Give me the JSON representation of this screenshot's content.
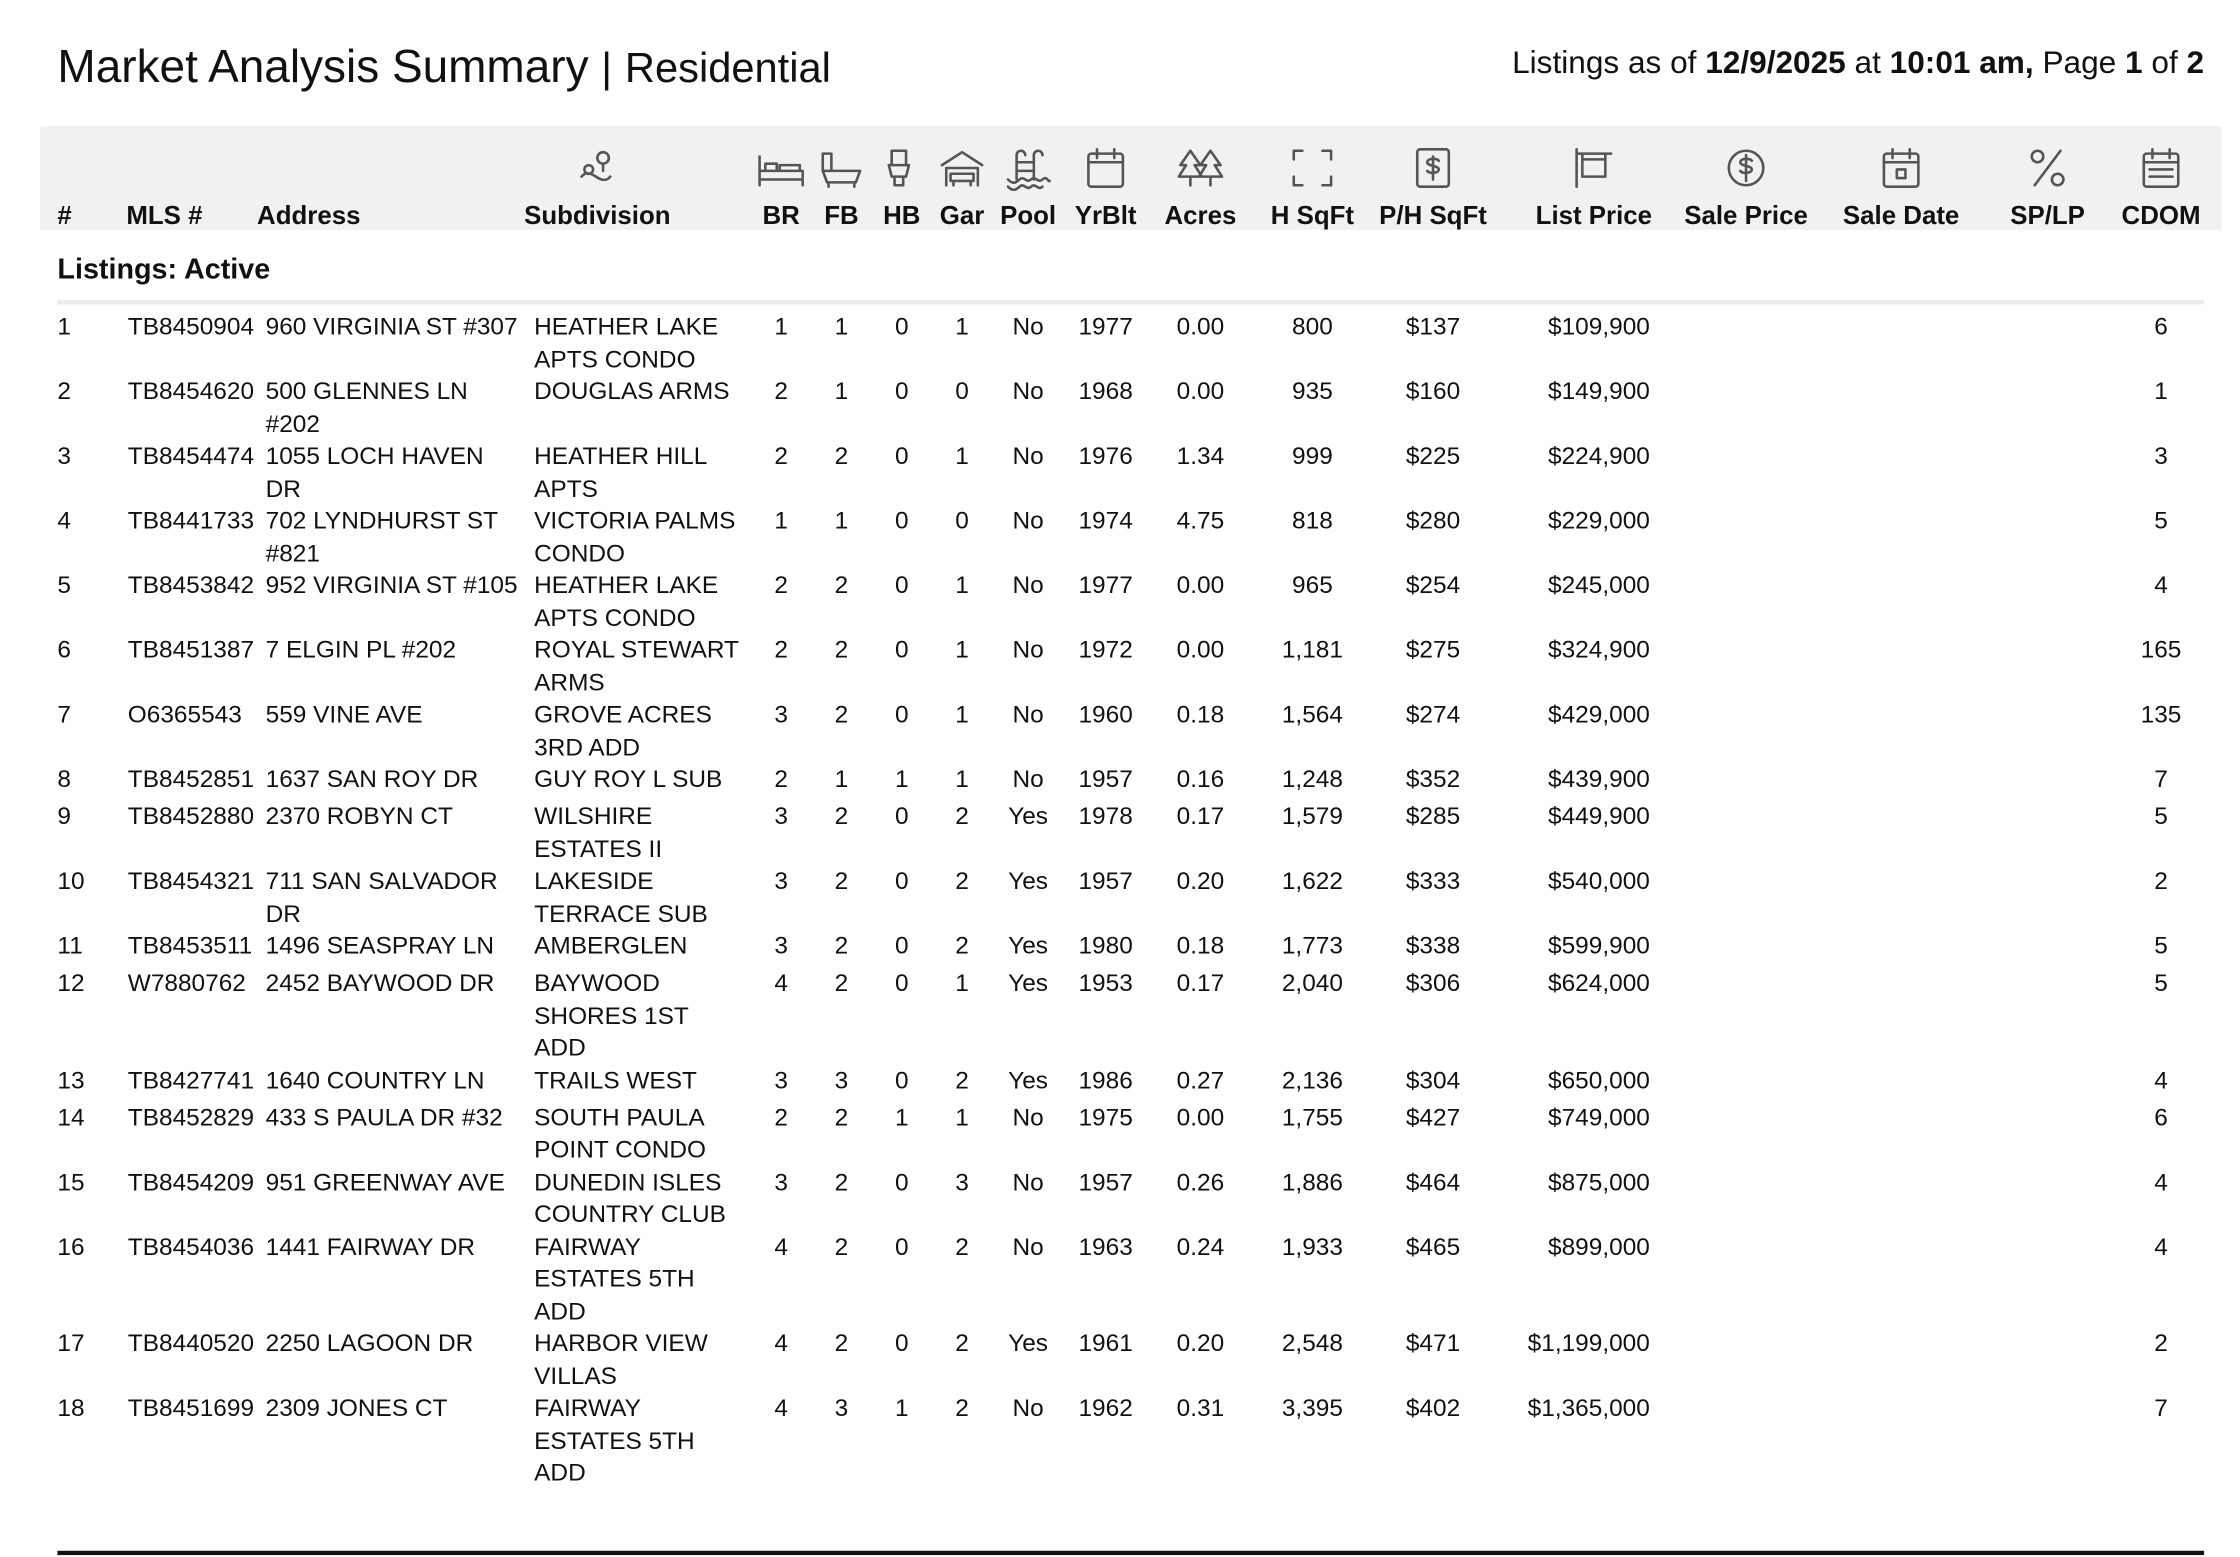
{
  "header": {
    "title": "Market Analysis Summary",
    "separator": "|",
    "subtitle": "Residential",
    "status": [
      {
        "text": "Listings as of ",
        "bold": false
      },
      {
        "text": "12/9/2025",
        "bold": true
      },
      {
        "text": " at ",
        "bold": false
      },
      {
        "text": "10:01 am,",
        "bold": true
      },
      {
        "text": " Page ",
        "bold": false
      },
      {
        "text": "1",
        "bold": true
      },
      {
        "text": " of ",
        "bold": false
      },
      {
        "text": "2",
        "bold": true
      }
    ]
  },
  "table": {
    "columns": [
      "#",
      "MLS #",
      "Address",
      "Subdivision",
      "BR",
      "FB",
      "HB",
      "Gar",
      "Pool",
      "YrBlt",
      "Acres",
      "H SqFt",
      "P/H SqFt",
      "List Price",
      "Sale Price",
      "Sale Date",
      "SP/LP",
      "CDOM"
    ],
    "section": "Listings: Active",
    "rows": [
      [
        "1",
        "TB8450904",
        "960 VIRGINIA ST #307",
        "HEATHER LAKE\nAPTS CONDO",
        "1",
        "1",
        "0",
        "1",
        "No",
        "1977",
        "0.00",
        "800",
        "$137",
        "$109,900",
        "6"
      ],
      [
        "2",
        "TB8454620",
        "500 GLENNES LN\n#202",
        "DOUGLAS ARMS",
        "2",
        "1",
        "0",
        "0",
        "No",
        "1968",
        "0.00",
        "935",
        "$160",
        "$149,900",
        "1"
      ],
      [
        "3",
        "TB8454474",
        "1055 LOCH HAVEN\nDR",
        "HEATHER HILL\nAPTS",
        "2",
        "2",
        "0",
        "1",
        "No",
        "1976",
        "1.34",
        "999",
        "$225",
        "$224,900",
        "3"
      ],
      [
        "4",
        "TB8441733",
        "702 LYNDHURST ST\n#821",
        "VICTORIA PALMS\nCONDO",
        "1",
        "1",
        "0",
        "0",
        "No",
        "1974",
        "4.75",
        "818",
        "$280",
        "$229,000",
        "5"
      ],
      [
        "5",
        "TB8453842",
        "952 VIRGINIA ST #105",
        "HEATHER LAKE\nAPTS CONDO",
        "2",
        "2",
        "0",
        "1",
        "No",
        "1977",
        "0.00",
        "965",
        "$254",
        "$245,000",
        "4"
      ],
      [
        "6",
        "TB8451387",
        "7 ELGIN PL #202",
        "ROYAL STEWART\nARMS",
        "2",
        "2",
        "0",
        "1",
        "No",
        "1972",
        "0.00",
        "1,181",
        "$275",
        "$324,900",
        "165"
      ],
      [
        "7",
        "O6365543",
        "559 VINE AVE",
        "GROVE ACRES\n3RD ADD",
        "3",
        "2",
        "0",
        "1",
        "No",
        "1960",
        "0.18",
        "1,564",
        "$274",
        "$429,000",
        "135"
      ],
      [
        "8",
        "TB8452851",
        "1637 SAN ROY DR",
        "GUY ROY L SUB",
        "2",
        "1",
        "1",
        "1",
        "No",
        "1957",
        "0.16",
        "1,248",
        "$352",
        "$439,900",
        "7"
      ],
      [
        "9",
        "TB8452880",
        "2370 ROBYN CT",
        "WILSHIRE\nESTATES II",
        "3",
        "2",
        "0",
        "2",
        "Yes",
        "1978",
        "0.17",
        "1,579",
        "$285",
        "$449,900",
        "5"
      ],
      [
        "10",
        "TB8454321",
        "711 SAN SALVADOR\nDR",
        "LAKESIDE\nTERRACE SUB",
        "3",
        "2",
        "0",
        "2",
        "Yes",
        "1957",
        "0.20",
        "1,622",
        "$333",
        "$540,000",
        "2"
      ],
      [
        "11",
        "TB8453511",
        "1496 SEASPRAY LN",
        "AMBERGLEN",
        "3",
        "2",
        "0",
        "2",
        "Yes",
        "1980",
        "0.18",
        "1,773",
        "$338",
        "$599,900",
        "5"
      ],
      [
        "12",
        "W7880762",
        "2452 BAYWOOD DR",
        "BAYWOOD\nSHORES 1ST\nADD",
        "4",
        "2",
        "0",
        "1",
        "Yes",
        "1953",
        "0.17",
        "2,040",
        "$306",
        "$624,000",
        "5"
      ],
      [
        "13",
        "TB8427741",
        "1640 COUNTRY LN",
        "TRAILS WEST",
        "3",
        "3",
        "0",
        "2",
        "Yes",
        "1986",
        "0.27",
        "2,136",
        "$304",
        "$650,000",
        "4"
      ],
      [
        "14",
        "TB8452829",
        "433 S PAULA DR #32",
        "SOUTH PAULA\nPOINT CONDO",
        "2",
        "2",
        "1",
        "1",
        "No",
        "1975",
        "0.00",
        "1,755",
        "$427",
        "$749,000",
        "6"
      ],
      [
        "15",
        "TB8454209",
        "951 GREENWAY AVE",
        "DUNEDIN ISLES\nCOUNTRY CLUB",
        "3",
        "2",
        "0",
        "3",
        "No",
        "1957",
        "0.26",
        "1,886",
        "$464",
        "$875,000",
        "4"
      ],
      [
        "16",
        "TB8454036",
        "1441 FAIRWAY DR",
        "FAIRWAY\nESTATES 5TH\nADD",
        "4",
        "2",
        "0",
        "2",
        "No",
        "1963",
        "0.24",
        "1,933",
        "$465",
        "$899,000",
        "4"
      ],
      [
        "17",
        "TB8440520",
        "2250 LAGOON DR",
        "HARBOR VIEW\nVILLAS",
        "4",
        "2",
        "0",
        "2",
        "Yes",
        "1961",
        "0.20",
        "2,548",
        "$471",
        "$1,199,000",
        "2"
      ],
      [
        "18",
        "TB8451699",
        "2309 JONES CT",
        "FAIRWAY\nESTATES 5TH\nADD",
        "4",
        "3",
        "1",
        "2",
        "No",
        "1962",
        "0.31",
        "3,395",
        "$402",
        "$1,365,000",
        "7"
      ]
    ]
  }
}
